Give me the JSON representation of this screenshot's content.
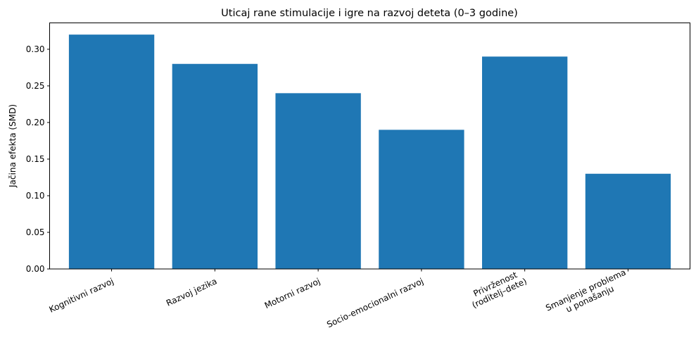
{
  "chart_data": {
    "type": "bar",
    "title": "Uticaj rane stimulacije i igre na razvoj deteta (0–3 godine)",
    "xlabel": "",
    "ylabel": "Jačina efekta (SMD)",
    "categories": [
      "Kognitivni razvoj",
      "Razvoj jezika",
      "Motorni razvoj",
      "Socio-emocionalni razvoj",
      "Privrženost\n(roditelj–dete)",
      "Smanjenje problema\nu ponašanju"
    ],
    "values": [
      0.32,
      0.28,
      0.24,
      0.19,
      0.29,
      0.13
    ],
    "ylim": [
      0,
      0.336
    ],
    "yticks": [
      "0.00",
      "0.05",
      "0.10",
      "0.15",
      "0.20",
      "0.25",
      "0.30"
    ],
    "grid": false,
    "bar_color": "#1f77b4"
  }
}
